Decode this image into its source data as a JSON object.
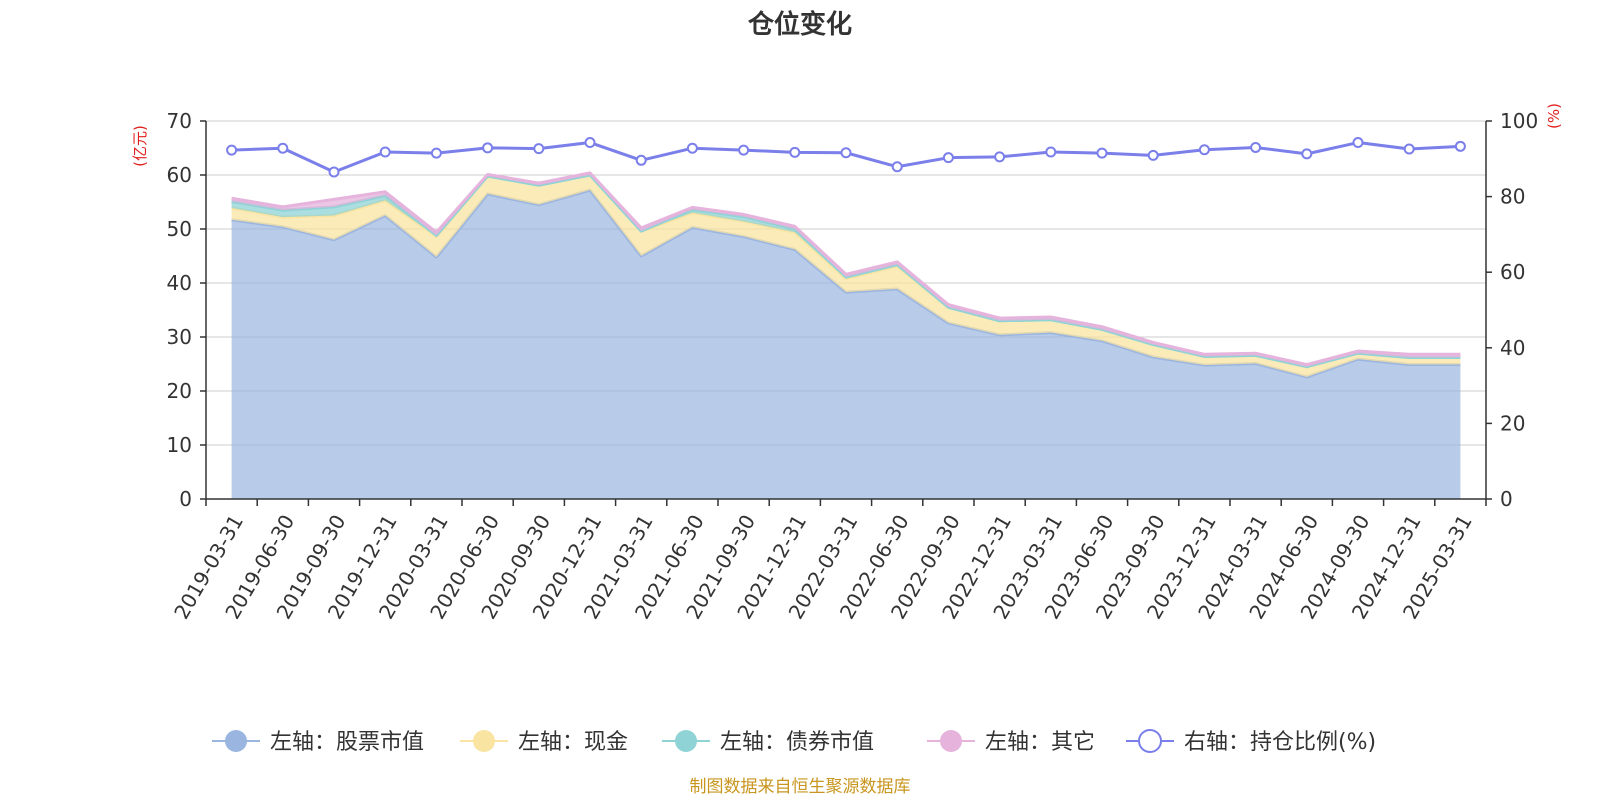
{
  "chart_data": {
    "type": "area",
    "title": "仓位变化",
    "left_unit": "(亿元)",
    "right_unit": "(%)",
    "source_text": "制图数据来自恒生聚源数据库",
    "colors": {
      "title": "#333333",
      "unit": "#e02020",
      "source": "#c8961e",
      "stock": "#9ab5e0",
      "cash": "#f9e4a2",
      "bond": "#8fd3d6",
      "other": "#e6b3dc",
      "ratio": "#7b7fea",
      "grid": "#cccccc",
      "axis": "#333333"
    },
    "x": [
      "2019-03-31",
      "2019-06-30",
      "2019-09-30",
      "2019-12-31",
      "2020-03-31",
      "2020-06-30",
      "2020-09-30",
      "2020-12-31",
      "2021-03-31",
      "2021-06-30",
      "2021-09-30",
      "2021-12-31",
      "2022-03-31",
      "2022-06-30",
      "2022-09-30",
      "2022-12-31",
      "2023-03-31",
      "2023-06-30",
      "2023-09-30",
      "2023-12-31",
      "2024-03-31",
      "2024-06-30",
      "2024-09-30",
      "2024-12-31",
      "2025-03-31"
    ],
    "left_axis": {
      "min": 0,
      "max": 70,
      "ticks": [
        0,
        10,
        20,
        30,
        40,
        50,
        60,
        70
      ]
    },
    "right_axis": {
      "min": 0,
      "max": 100,
      "ticks": [
        0,
        20,
        40,
        60,
        80,
        100
      ]
    },
    "series": [
      {
        "name": "左轴：股票市值",
        "axis": "left",
        "stack": true,
        "values": [
          51.7,
          50.4,
          48.0,
          52.5,
          44.8,
          56.5,
          54.5,
          57.2,
          45.0,
          50.3,
          48.6,
          46.2,
          38.3,
          38.9,
          32.6,
          30.4,
          30.8,
          29.3,
          26.3,
          24.8,
          25.1,
          22.6,
          25.9,
          24.9,
          24.9
        ]
      },
      {
        "name": "左轴：现金",
        "axis": "left",
        "stack": true,
        "values": [
          2.2,
          1.8,
          4.5,
          2.8,
          3.8,
          3.3,
          3.6,
          2.8,
          4.6,
          2.7,
          2.8,
          3.2,
          2.5,
          4.2,
          2.9,
          2.6,
          2.4,
          2.1,
          2.3,
          1.6,
          1.5,
          1.9,
          1.1,
          1.3,
          1.3
        ]
      },
      {
        "name": "左轴：债券市值",
        "axis": "left",
        "stack": true,
        "values": [
          1.2,
          1.3,
          1.6,
          0.9,
          0.2,
          0.0,
          0.0,
          0.0,
          0.0,
          0.6,
          0.9,
          0.6,
          0.3,
          0.3,
          0.0,
          0.0,
          0.0,
          0.0,
          0.0,
          0.0,
          0.0,
          0.0,
          0.0,
          0.0,
          0.0
        ]
      },
      {
        "name": "左轴：其它",
        "axis": "left",
        "stack": true,
        "values": [
          0.6,
          0.6,
          1.4,
          0.7,
          0.6,
          0.3,
          0.4,
          0.4,
          0.6,
          0.4,
          0.4,
          0.5,
          0.5,
          0.5,
          0.5,
          0.5,
          0.5,
          0.5,
          0.4,
          0.4,
          0.4,
          0.4,
          0.4,
          0.6,
          0.6
        ]
      },
      {
        "name": "右轴：持仓比例(%)",
        "axis": "right",
        "stack": false,
        "values": [
          92.3,
          92.8,
          86.5,
          91.8,
          91.5,
          92.9,
          92.7,
          94.3,
          89.6,
          92.8,
          92.3,
          91.7,
          91.6,
          87.9,
          90.3,
          90.5,
          91.8,
          91.5,
          90.9,
          92.4,
          93.0,
          91.3,
          94.3,
          92.6,
          93.3
        ]
      }
    ],
    "legend_position": "bottom-center",
    "grid": true
  }
}
